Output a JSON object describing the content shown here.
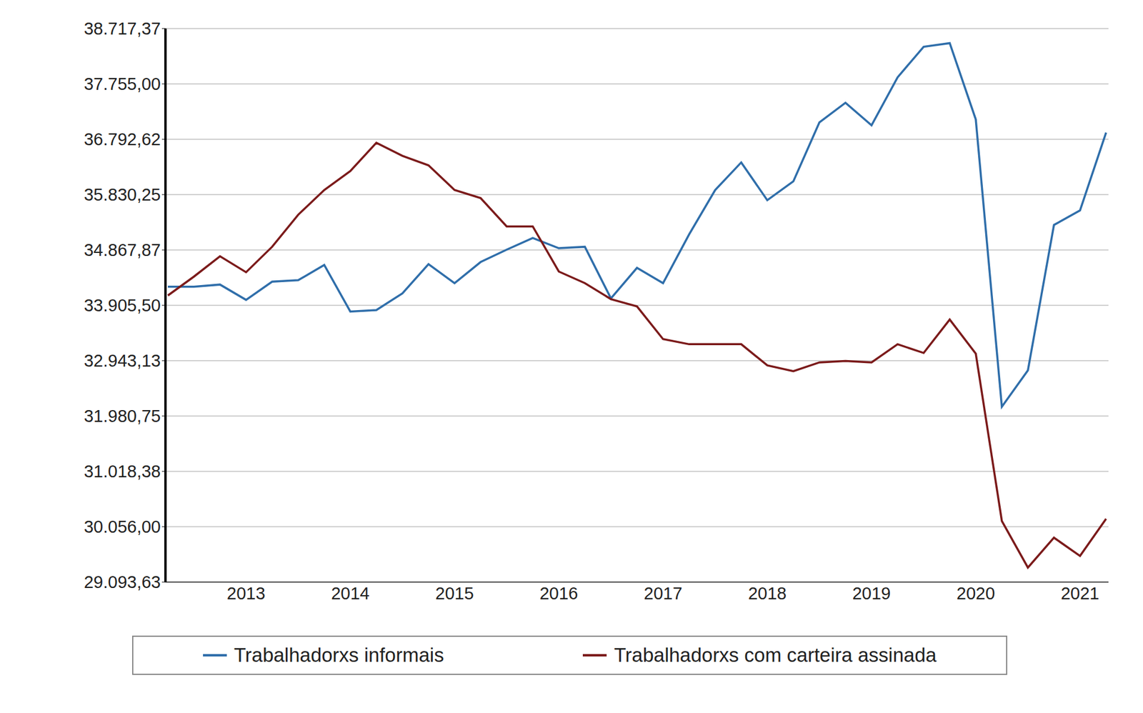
{
  "chart_data": {
    "type": "line",
    "categories": [
      null,
      null,
      null,
      "2013",
      null,
      null,
      null,
      "2014",
      null,
      null,
      null,
      "2015",
      null,
      null,
      null,
      "2016",
      null,
      null,
      null,
      "2017",
      null,
      null,
      null,
      "2018",
      null,
      null,
      null,
      "2019",
      null,
      null,
      null,
      "2020",
      null,
      null,
      null,
      "2021",
      null
    ],
    "series": [
      {
        "name": "Trabalhadorxs informais",
        "color": "#2f6eaa",
        "values": [
          34228,
          34228,
          34266,
          34000,
          34316,
          34342,
          34607,
          33798,
          33823,
          34114,
          34620,
          34291,
          34658,
          34873,
          35075,
          34898,
          34923,
          34026,
          34557,
          34291,
          35138,
          35910,
          36390,
          35733,
          36061,
          37086,
          37427,
          37035,
          37870,
          38401,
          38464,
          37137,
          32141,
          32774,
          35303,
          35555,
          36909
        ]
      },
      {
        "name": "Trabalhadorxs com carteira assinada",
        "color": "#7b1a1a",
        "values": [
          34076,
          34405,
          34759,
          34481,
          34923,
          35480,
          35910,
          36239,
          36732,
          36504,
          36340,
          35910,
          35770,
          35277,
          35277,
          34493,
          34291,
          34013,
          33886,
          33318,
          33229,
          33229,
          33229,
          32862,
          32761,
          32913,
          32938,
          32913,
          33229,
          33077,
          33659,
          33065,
          30156,
          29346,
          29865,
          29548,
          30193
        ]
      }
    ],
    "ylim": [
      29093.63,
      38717.37
    ],
    "yticks": [
      {
        "value": 29093.63,
        "label": "29.093,63"
      },
      {
        "value": 30056.0,
        "label": "30.056,00"
      },
      {
        "value": 31018.38,
        "label": "31.018,38"
      },
      {
        "value": 31980.75,
        "label": "31.980,75"
      },
      {
        "value": 32943.13,
        "label": "32.943,13"
      },
      {
        "value": 33905.5,
        "label": "33.905,50"
      },
      {
        "value": 34867.87,
        "label": "34.867,87"
      },
      {
        "value": 35830.25,
        "label": "35.830,25"
      },
      {
        "value": 36792.62,
        "label": "36.792,62"
      },
      {
        "value": 37755.0,
        "label": "37.755,00"
      },
      {
        "value": 38717.37,
        "label": "38.717,37"
      }
    ],
    "grid": true,
    "legend": "bottom"
  }
}
